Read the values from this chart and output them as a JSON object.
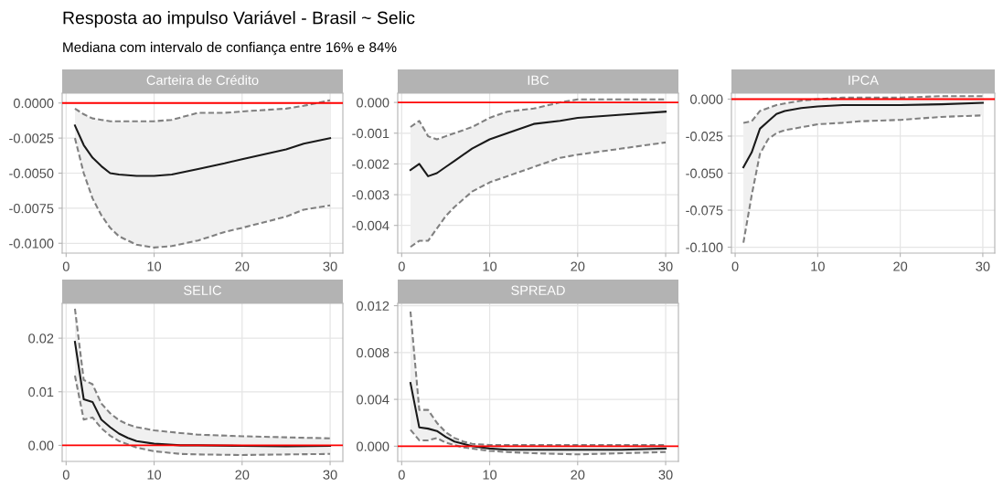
{
  "chart_data": [
    {
      "type": "line",
      "title": "Carteira de Crédito",
      "annotations": [
        "Resposta ao impulso Variável - Brasil ~ Selic",
        "Mediana com intervalo de confiança entre 16% e 84%"
      ],
      "xlim": [
        -0.45,
        31.45
      ],
      "xticks": [
        0,
        10,
        20,
        30
      ],
      "ylim": [
        -0.0107,
        0.0007
      ],
      "yticks": [
        {
          "value": 0,
          "label": "0.0000"
        },
        {
          "value": -0.0025,
          "label": "-0.0025"
        },
        {
          "value": -0.005,
          "label": "-0.0050"
        },
        {
          "value": -0.0075,
          "label": "-0.0075"
        },
        {
          "value": -0.01,
          "label": "-0.0100"
        }
      ],
      "grid": true,
      "ref_lines": [
        {
          "axis": "y",
          "value": 0,
          "color": "#ff0000"
        }
      ],
      "series": [
        {
          "color": "#1a1a1a",
          "line_style": "solid",
          "x": [
            1,
            2,
            3,
            4,
            5,
            6,
            8,
            10,
            12,
            15,
            18,
            20,
            25,
            27,
            30
          ],
          "values": [
            -0.0016,
            -0.003,
            -0.0039,
            -0.0045,
            -0.005,
            -0.0051,
            -0.0052,
            -0.0052,
            -0.0051,
            -0.0047,
            -0.0043,
            -0.004,
            -0.0033,
            -0.0029,
            -0.0025
          ],
          "lower": [
            -0.0025,
            -0.005,
            -0.0068,
            -0.008,
            -0.0089,
            -0.0095,
            -0.0101,
            -0.0103,
            -0.0102,
            -0.0098,
            -0.0092,
            -0.0089,
            -0.0081,
            -0.0076,
            -0.0073
          ],
          "upper": [
            -0.0004,
            -0.0008,
            -0.0011,
            -0.0012,
            -0.0013,
            -0.0013,
            -0.0013,
            -0.0013,
            -0.0012,
            -0.0007,
            -0.0007,
            -0.0006,
            -0.0004,
            -0.0002,
            0.0002
          ]
        },
        {
          "color": "#808080",
          "line_style": "dashed",
          "x": [
            1,
            2,
            3,
            4,
            5,
            6,
            8,
            10,
            12,
            15,
            18,
            20,
            25,
            27,
            30
          ],
          "values": [
            -0.0025,
            -0.005,
            -0.0068,
            -0.008,
            -0.0089,
            -0.0095,
            -0.0101,
            -0.0103,
            -0.0102,
            -0.0098,
            -0.0092,
            -0.0089,
            -0.0081,
            -0.0076,
            -0.0073
          ]
        },
        {
          "color": "#808080",
          "line_style": "dashed",
          "x": [
            1,
            2,
            3,
            4,
            5,
            6,
            8,
            10,
            12,
            15,
            18,
            20,
            25,
            27,
            30
          ],
          "values": [
            -0.0004,
            -0.0008,
            -0.0011,
            -0.0012,
            -0.0013,
            -0.0013,
            -0.0013,
            -0.0013,
            -0.0012,
            -0.0007,
            -0.0007,
            -0.0006,
            -0.0004,
            -0.0002,
            0.0002
          ]
        }
      ]
    },
    {
      "type": "line",
      "title": "IBC",
      "xlim": [
        -0.45,
        31.45
      ],
      "xticks": [
        0,
        10,
        20,
        30
      ],
      "ylim": [
        -0.0049,
        0.0003
      ],
      "yticks": [
        {
          "value": 0,
          "label": "0.000"
        },
        {
          "value": -0.001,
          "label": "-0.001"
        },
        {
          "value": -0.002,
          "label": "-0.002"
        },
        {
          "value": -0.003,
          "label": "-0.003"
        },
        {
          "value": -0.004,
          "label": "-0.004"
        }
      ],
      "grid": true,
      "ref_lines": [
        {
          "axis": "y",
          "value": 0,
          "color": "#ff0000"
        }
      ],
      "series": [
        {
          "color": "#1a1a1a",
          "line_style": "solid",
          "x": [
            1,
            2,
            3,
            4,
            5,
            6,
            8,
            10,
            12,
            15,
            18,
            20,
            25,
            30
          ],
          "values": [
            -0.0022,
            -0.002,
            -0.0024,
            -0.0023,
            -0.0021,
            -0.0019,
            -0.0015,
            -0.0012,
            -0.001,
            -0.0007,
            -0.0006,
            -0.0005,
            -0.0004,
            -0.0003
          ],
          "lower": [
            -0.0047,
            -0.0045,
            -0.0045,
            -0.0041,
            -0.0037,
            -0.0034,
            -0.0029,
            -0.0026,
            -0.0024,
            -0.0021,
            -0.0018,
            -0.0017,
            -0.0015,
            -0.0013
          ],
          "upper": [
            -0.0008,
            -0.0006,
            -0.0011,
            -0.0012,
            -0.0011,
            -0.001,
            -0.0008,
            -0.0005,
            -0.0003,
            -0.0002,
            0.0,
            0.0001,
            0.0001,
            0.0001
          ]
        },
        {
          "color": "#808080",
          "line_style": "dashed",
          "x": [
            1,
            2,
            3,
            4,
            5,
            6,
            8,
            10,
            12,
            15,
            18,
            20,
            25,
            30
          ],
          "values": [
            -0.0047,
            -0.0045,
            -0.0045,
            -0.0041,
            -0.0037,
            -0.0034,
            -0.0029,
            -0.0026,
            -0.0024,
            -0.0021,
            -0.0018,
            -0.0017,
            -0.0015,
            -0.0013
          ]
        },
        {
          "color": "#808080",
          "line_style": "dashed",
          "x": [
            1,
            2,
            3,
            4,
            5,
            6,
            8,
            10,
            12,
            15,
            18,
            20,
            25,
            30
          ],
          "values": [
            -0.0008,
            -0.0006,
            -0.0011,
            -0.0012,
            -0.0011,
            -0.001,
            -0.0008,
            -0.0005,
            -0.0003,
            -0.0002,
            0.0,
            0.0001,
            0.0001,
            0.0001
          ]
        }
      ]
    },
    {
      "type": "line",
      "title": "IPCA",
      "xlim": [
        -0.45,
        31.45
      ],
      "xticks": [
        0,
        10,
        20,
        30
      ],
      "ylim": [
        -0.104,
        0.004
      ],
      "yticks": [
        {
          "value": 0,
          "label": "0.000"
        },
        {
          "value": -0.025,
          "label": "-0.025"
        },
        {
          "value": -0.05,
          "label": "-0.050"
        },
        {
          "value": -0.075,
          "label": "-0.075"
        },
        {
          "value": -0.1,
          "label": "-0.100"
        }
      ],
      "grid": true,
      "ref_lines": [
        {
          "axis": "y",
          "value": 0,
          "color": "#ff0000"
        }
      ],
      "series": [
        {
          "color": "#1a1a1a",
          "line_style": "solid",
          "x": [
            1,
            2,
            3,
            4,
            5,
            6,
            8,
            10,
            13,
            15,
            20,
            25,
            30
          ],
          "values": [
            -0.046,
            -0.036,
            -0.02,
            -0.015,
            -0.01,
            -0.008,
            -0.006,
            -0.005,
            -0.004,
            -0.004,
            -0.004,
            -0.0035,
            -0.0025
          ],
          "lower": [
            -0.097,
            -0.065,
            -0.037,
            -0.027,
            -0.023,
            -0.021,
            -0.019,
            -0.017,
            -0.016,
            -0.015,
            -0.014,
            -0.012,
            -0.011
          ],
          "upper": [
            -0.016,
            -0.015,
            -0.008,
            -0.006,
            -0.004,
            -0.003,
            -0.001,
            0.0,
            0.001,
            0.001,
            0.001,
            0.002,
            0.002
          ]
        },
        {
          "color": "#808080",
          "line_style": "dashed",
          "x": [
            1,
            2,
            3,
            4,
            5,
            6,
            8,
            10,
            13,
            15,
            20,
            25,
            30
          ],
          "values": [
            -0.097,
            -0.065,
            -0.037,
            -0.027,
            -0.023,
            -0.021,
            -0.019,
            -0.017,
            -0.016,
            -0.015,
            -0.014,
            -0.012,
            -0.011
          ]
        },
        {
          "color": "#808080",
          "line_style": "dashed",
          "x": [
            1,
            2,
            3,
            4,
            5,
            6,
            8,
            10,
            13,
            15,
            20,
            25,
            30
          ],
          "values": [
            -0.016,
            -0.015,
            -0.008,
            -0.006,
            -0.004,
            -0.003,
            -0.001,
            0.0,
            0.001,
            0.001,
            0.001,
            0.002,
            0.002
          ]
        }
      ]
    },
    {
      "type": "line",
      "title": "SELIC",
      "xlim": [
        -0.45,
        31.45
      ],
      "xticks": [
        0,
        10,
        20,
        30
      ],
      "ylim": [
        -0.003,
        0.0265
      ],
      "yticks": [
        {
          "value": 0,
          "label": "0.00"
        },
        {
          "value": 0.01,
          "label": "0.01"
        },
        {
          "value": 0.02,
          "label": "0.02"
        }
      ],
      "grid": true,
      "ref_lines": [
        {
          "axis": "y",
          "value": 0,
          "color": "#ff0000"
        }
      ],
      "series": [
        {
          "color": "#1a1a1a",
          "line_style": "solid",
          "x": [
            1,
            2,
            3,
            4,
            5,
            6,
            7,
            8,
            10,
            13,
            15,
            20,
            25,
            30
          ],
          "values": [
            0.0193,
            0.0086,
            0.0081,
            0.0048,
            0.0034,
            0.0022,
            0.0014,
            0.0008,
            0.0003,
            0.0,
            0.0,
            -0.0001,
            -0.0002,
            -0.0001
          ],
          "lower": [
            0.013,
            0.0048,
            0.0052,
            0.0032,
            0.0018,
            0.0008,
            0.0002,
            -0.0004,
            -0.0011,
            -0.0016,
            -0.0017,
            -0.0018,
            -0.0017,
            -0.0016
          ],
          "upper": [
            0.0255,
            0.0122,
            0.0114,
            0.0078,
            0.006,
            0.0047,
            0.0039,
            0.0034,
            0.0028,
            0.0023,
            0.002,
            0.0017,
            0.0015,
            0.0013
          ]
        },
        {
          "color": "#808080",
          "line_style": "dashed",
          "x": [
            1,
            2,
            3,
            4,
            5,
            6,
            7,
            8,
            10,
            13,
            15,
            20,
            25,
            30
          ],
          "values": [
            0.013,
            0.0048,
            0.0052,
            0.0032,
            0.0018,
            0.0008,
            0.0002,
            -0.0004,
            -0.0011,
            -0.0016,
            -0.0017,
            -0.0018,
            -0.0017,
            -0.0016
          ]
        },
        {
          "color": "#808080",
          "line_style": "dashed",
          "x": [
            1,
            2,
            3,
            4,
            5,
            6,
            7,
            8,
            10,
            13,
            15,
            20,
            25,
            30
          ],
          "values": [
            0.0255,
            0.0122,
            0.0114,
            0.0078,
            0.006,
            0.0047,
            0.0039,
            0.0034,
            0.0028,
            0.0023,
            0.002,
            0.0017,
            0.0015,
            0.0013
          ]
        }
      ]
    },
    {
      "type": "line",
      "title": "SPREAD",
      "xlim": [
        -0.45,
        31.45
      ],
      "xticks": [
        0,
        10,
        20,
        30
      ],
      "ylim": [
        -0.0013,
        0.0122
      ],
      "yticks": [
        {
          "value": 0,
          "label": "0.000"
        },
        {
          "value": 0.004,
          "label": "0.004"
        },
        {
          "value": 0.008,
          "label": "0.008"
        },
        {
          "value": 0.012,
          "label": "0.012"
        }
      ],
      "grid": true,
      "ref_lines": [
        {
          "axis": "y",
          "value": 0,
          "color": "#ff0000"
        }
      ],
      "series": [
        {
          "color": "#1a1a1a",
          "line_style": "solid",
          "x": [
            1,
            2,
            3,
            4,
            5,
            6,
            7,
            8,
            10,
            12,
            15,
            20,
            25,
            30
          ],
          "values": [
            0.0054,
            0.0016,
            0.0015,
            0.0013,
            0.0008,
            0.0004,
            0.0002,
            0.0,
            -0.0002,
            -0.0003,
            -0.0003,
            -0.0003,
            -0.0003,
            -0.0002
          ],
          "lower": [
            0.0014,
            0.0005,
            0.0005,
            0.0007,
            0.0003,
            0.0001,
            -0.0001,
            -0.0002,
            -0.0004,
            -0.0005,
            -0.0006,
            -0.0007,
            -0.0006,
            -0.0005
          ],
          "upper": [
            0.0115,
            0.0031,
            0.0031,
            0.002,
            0.0012,
            0.0007,
            0.0004,
            0.0002,
            0.0001,
            0.0001,
            0.0001,
            0.0001,
            0.0001,
            0.0001
          ]
        },
        {
          "color": "#808080",
          "line_style": "dashed",
          "x": [
            1,
            2,
            3,
            4,
            5,
            6,
            7,
            8,
            10,
            12,
            15,
            20,
            25,
            30
          ],
          "values": [
            0.0014,
            0.0005,
            0.0005,
            0.0007,
            0.0003,
            0.0001,
            -0.0001,
            -0.0002,
            -0.0004,
            -0.0005,
            -0.0006,
            -0.0007,
            -0.0006,
            -0.0005
          ]
        },
        {
          "color": "#808080",
          "line_style": "dashed",
          "x": [
            1,
            2,
            3,
            4,
            5,
            6,
            7,
            8,
            10,
            12,
            15,
            20,
            25,
            30
          ],
          "values": [
            0.0115,
            0.0031,
            0.0031,
            0.002,
            0.0012,
            0.0007,
            0.0004,
            0.0002,
            0.0001,
            0.0001,
            0.0001,
            0.0001,
            0.0001,
            0.0001
          ]
        }
      ]
    }
  ]
}
